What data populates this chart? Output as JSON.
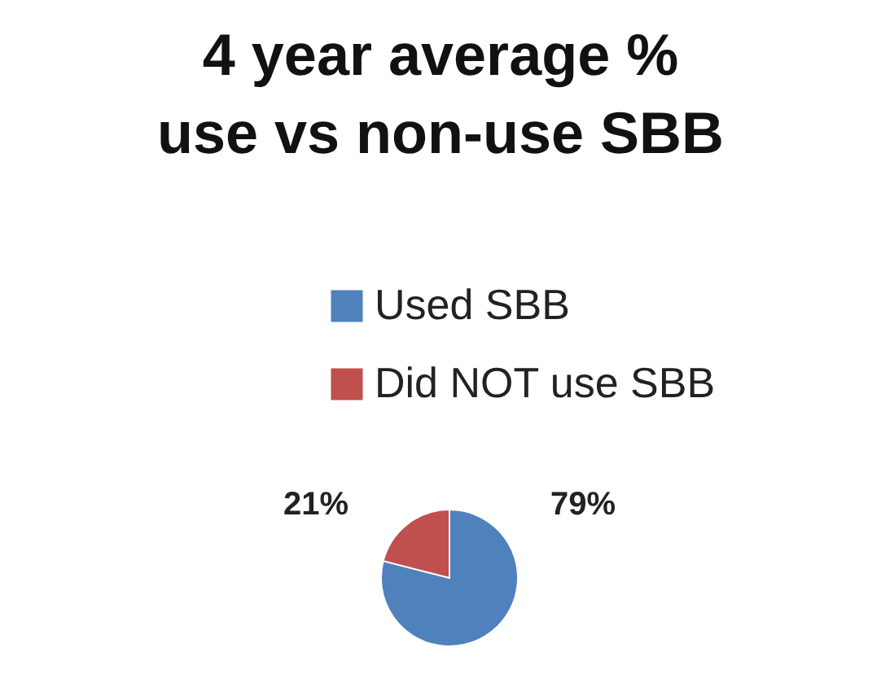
{
  "chart_data": {
    "type": "pie",
    "title": [
      "4 year average %",
      "use vs non-use SBB"
    ],
    "categories": [
      "Used SBB",
      "Did NOT use SBB"
    ],
    "values": [
      79,
      21
    ],
    "colors": [
      "#4f81bd",
      "#c0504d"
    ],
    "value_labels": [
      "79%",
      "21%"
    ],
    "legend": "top"
  }
}
